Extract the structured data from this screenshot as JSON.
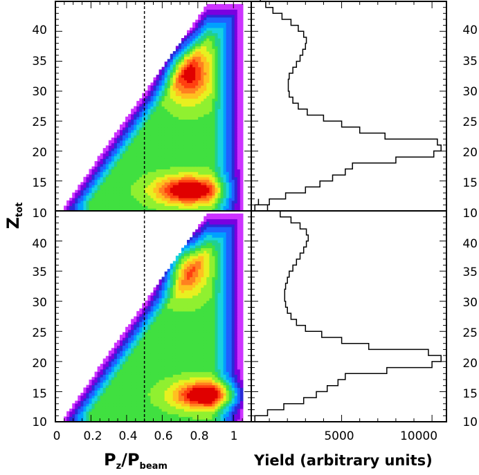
{
  "chart_data": [
    {
      "type": "heatmap",
      "panel": "top-left",
      "description_of_shape": "2D contour plot (rainbow contours) of Z_tot vs P_z/P_beam",
      "xlim": [
        0,
        1.1
      ],
      "ylim": [
        10,
        45
      ],
      "x_ticks": [],
      "y_ticks": [
        10,
        15,
        20,
        25,
        30,
        35,
        40
      ],
      "vertical_line_x": 0.5,
      "peaks": [
        {
          "x": 0.75,
          "y": 33,
          "level": "high"
        },
        {
          "x": 0.75,
          "y": 13.5,
          "level": "max"
        }
      ]
    },
    {
      "type": "heatmap",
      "panel": "bottom-left",
      "xlim": [
        0,
        1.1
      ],
      "ylim": [
        10,
        45
      ],
      "x_ticks": [
        0,
        0.2,
        0.4,
        0.6,
        0.8,
        1
      ],
      "y_ticks": [
        10,
        15,
        20,
        25,
        30,
        35,
        40
      ],
      "vertical_line_x": 0.5,
      "peaks": [
        {
          "x": 0.72,
          "y": 36,
          "level": "high"
        },
        {
          "x": 0.85,
          "y": 14.5,
          "level": "max"
        }
      ]
    },
    {
      "type": "line",
      "panel": "top-right",
      "style": "step histogram",
      "xlim": [
        0,
        10800
      ],
      "ylim": [
        10,
        45
      ],
      "x": [
        200,
        1000,
        1900,
        3000,
        3800,
        4500,
        5200,
        5600,
        8000,
        10100,
        10500,
        10300,
        7400,
        6000,
        5000,
        4000,
        3100,
        2600,
        2300,
        2100,
        2050,
        2050,
        2100,
        2300,
        2500,
        2700,
        2850,
        3000,
        3050,
        2900,
        2600,
        2200,
        1700,
        1200,
        800,
        500,
        300
      ],
      "y_bins_start": 10,
      "bin_width": 1
    },
    {
      "type": "line",
      "panel": "bottom-right",
      "style": "step histogram",
      "xlim": [
        0,
        10800
      ],
      "ylim": [
        10,
        45
      ],
      "x_ticks": [
        5000,
        10000
      ],
      "x": [
        200,
        900,
        1800,
        2900,
        3600,
        4200,
        4800,
        5200,
        7500,
        10000,
        10500,
        9800,
        6500,
        5000,
        3900,
        3000,
        2500,
        2200,
        2000,
        1900,
        1850,
        1850,
        1900,
        2000,
        2100,
        2300,
        2500,
        2700,
        2900,
        3050,
        3150,
        3050,
        2700,
        2200,
        1600,
        900,
        400
      ],
      "y_bins_start": 10,
      "bin_width": 1
    }
  ],
  "labels": {
    "y_axis": "Z",
    "y_axis_sub": "tot",
    "x_left_main": "P",
    "x_left_sub1": "z",
    "x_left_slash": "/P",
    "x_left_sub2": "beam",
    "x_right": "Yield (arbitrary units)"
  },
  "ticks": {
    "left_x": [
      "0",
      "0.2",
      "0.4",
      "0.6",
      "0.8",
      "1"
    ],
    "right_x": [
      "5000",
      "10000"
    ],
    "y": [
      "10",
      "15",
      "20",
      "25",
      "30",
      "35",
      "40"
    ]
  }
}
